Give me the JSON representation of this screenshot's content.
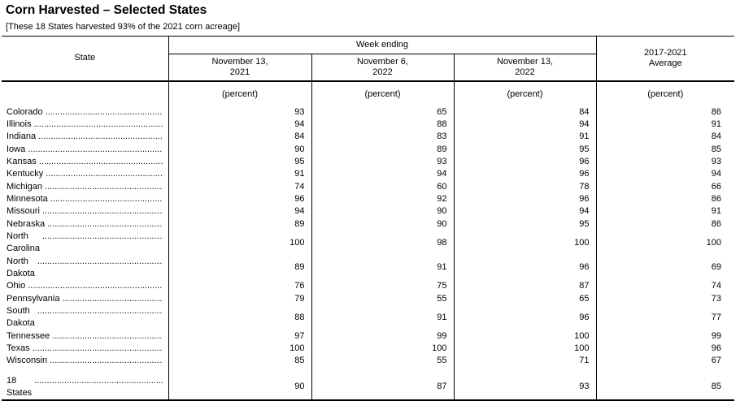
{
  "page": {
    "title": "Corn Harvested – Selected States",
    "subtitle": "[These 18 States harvested 93% of the 2021 corn acreage]"
  },
  "table": {
    "state_header": "State",
    "group_header": "Week ending",
    "avg_header": "2017-2021\nAverage",
    "columns": [
      "November 13,\n2021",
      "November 6,\n2022",
      "November 13,\n2022"
    ],
    "units": [
      "(percent)",
      "(percent)",
      "(percent)",
      "(percent)"
    ],
    "rows": [
      {
        "state": "Colorado",
        "values": [
          "93",
          "65",
          "84",
          "86"
        ]
      },
      {
        "state": "Illinois",
        "values": [
          "94",
          "88",
          "94",
          "91"
        ]
      },
      {
        "state": "Indiana",
        "values": [
          "84",
          "83",
          "91",
          "84"
        ]
      },
      {
        "state": "Iowa",
        "values": [
          "90",
          "89",
          "95",
          "85"
        ]
      },
      {
        "state": "Kansas",
        "values": [
          "95",
          "93",
          "96",
          "93"
        ]
      },
      {
        "state": "Kentucky",
        "values": [
          "91",
          "94",
          "96",
          "94"
        ]
      },
      {
        "state": "Michigan",
        "values": [
          "74",
          "60",
          "78",
          "66"
        ]
      },
      {
        "state": "Minnesota",
        "values": [
          "96",
          "92",
          "96",
          "86"
        ]
      },
      {
        "state": "Missouri",
        "values": [
          "94",
          "90",
          "94",
          "91"
        ]
      },
      {
        "state": "Nebraska",
        "values": [
          "89",
          "90",
          "95",
          "86"
        ]
      },
      {
        "state": "North Carolina",
        "values": [
          "100",
          "98",
          "100",
          "100"
        ]
      },
      {
        "state": "North Dakota",
        "values": [
          "89",
          "91",
          "96",
          "69"
        ]
      },
      {
        "state": "Ohio",
        "values": [
          "76",
          "75",
          "87",
          "74"
        ]
      },
      {
        "state": "Pennsylvania",
        "values": [
          "79",
          "55",
          "65",
          "73"
        ]
      },
      {
        "state": "South Dakota",
        "values": [
          "88",
          "91",
          "96",
          "77"
        ]
      },
      {
        "state": "Tennessee",
        "values": [
          "97",
          "99",
          "100",
          "99"
        ]
      },
      {
        "state": "Texas",
        "values": [
          "100",
          "100",
          "100",
          "96"
        ]
      },
      {
        "state": "Wisconsin",
        "values": [
          "85",
          "55",
          "71",
          "67"
        ]
      }
    ],
    "total_row": {
      "state": "18 States",
      "values": [
        "90",
        "87",
        "93",
        "85"
      ]
    }
  }
}
